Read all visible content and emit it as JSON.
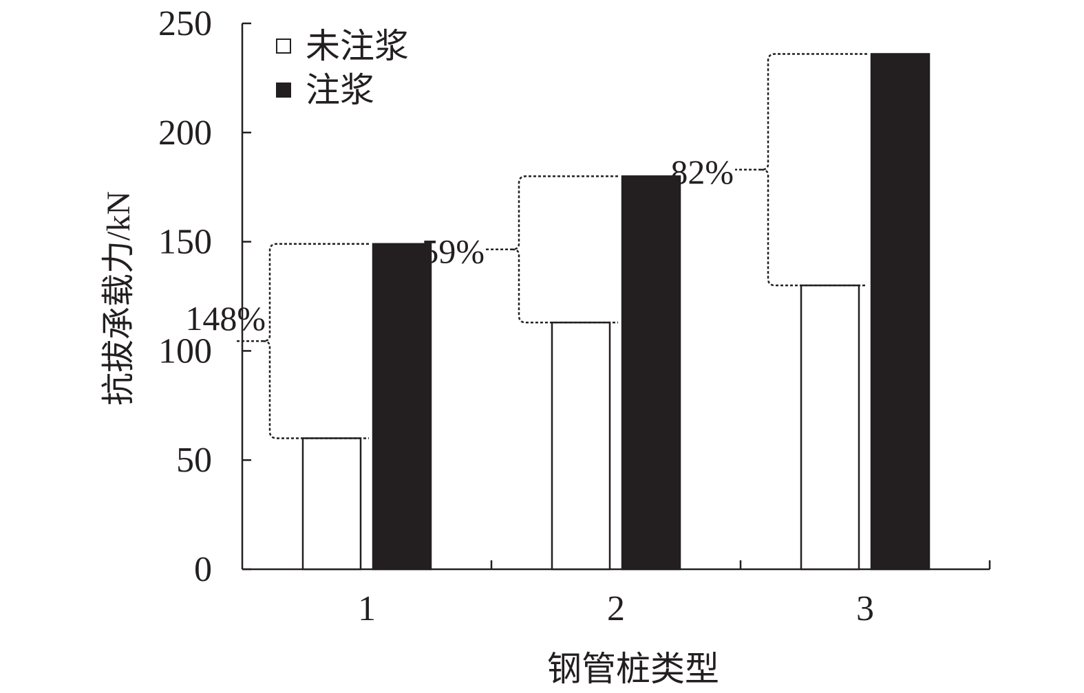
{
  "chart_data": {
    "type": "bar",
    "xlabel": "钢管桩类型",
    "ylabel": "抗拔承载力/kN",
    "categories": [
      "1",
      "2",
      "3"
    ],
    "ylim": [
      0,
      250
    ],
    "yticks": [
      "0",
      "50",
      "100",
      "150",
      "200",
      "250"
    ],
    "series": [
      {
        "name": "未注浆",
        "values": [
          60,
          113,
          130
        ],
        "color": "#ffffff",
        "stroke": "#231f20"
      },
      {
        "name": "注浆",
        "values": [
          149,
          180,
          236
        ],
        "color": "#231f20",
        "stroke": "#231f20"
      }
    ],
    "annotations": [
      "148%",
      "59%",
      "82%"
    ],
    "legend_position": "top-left",
    "grid": false
  }
}
